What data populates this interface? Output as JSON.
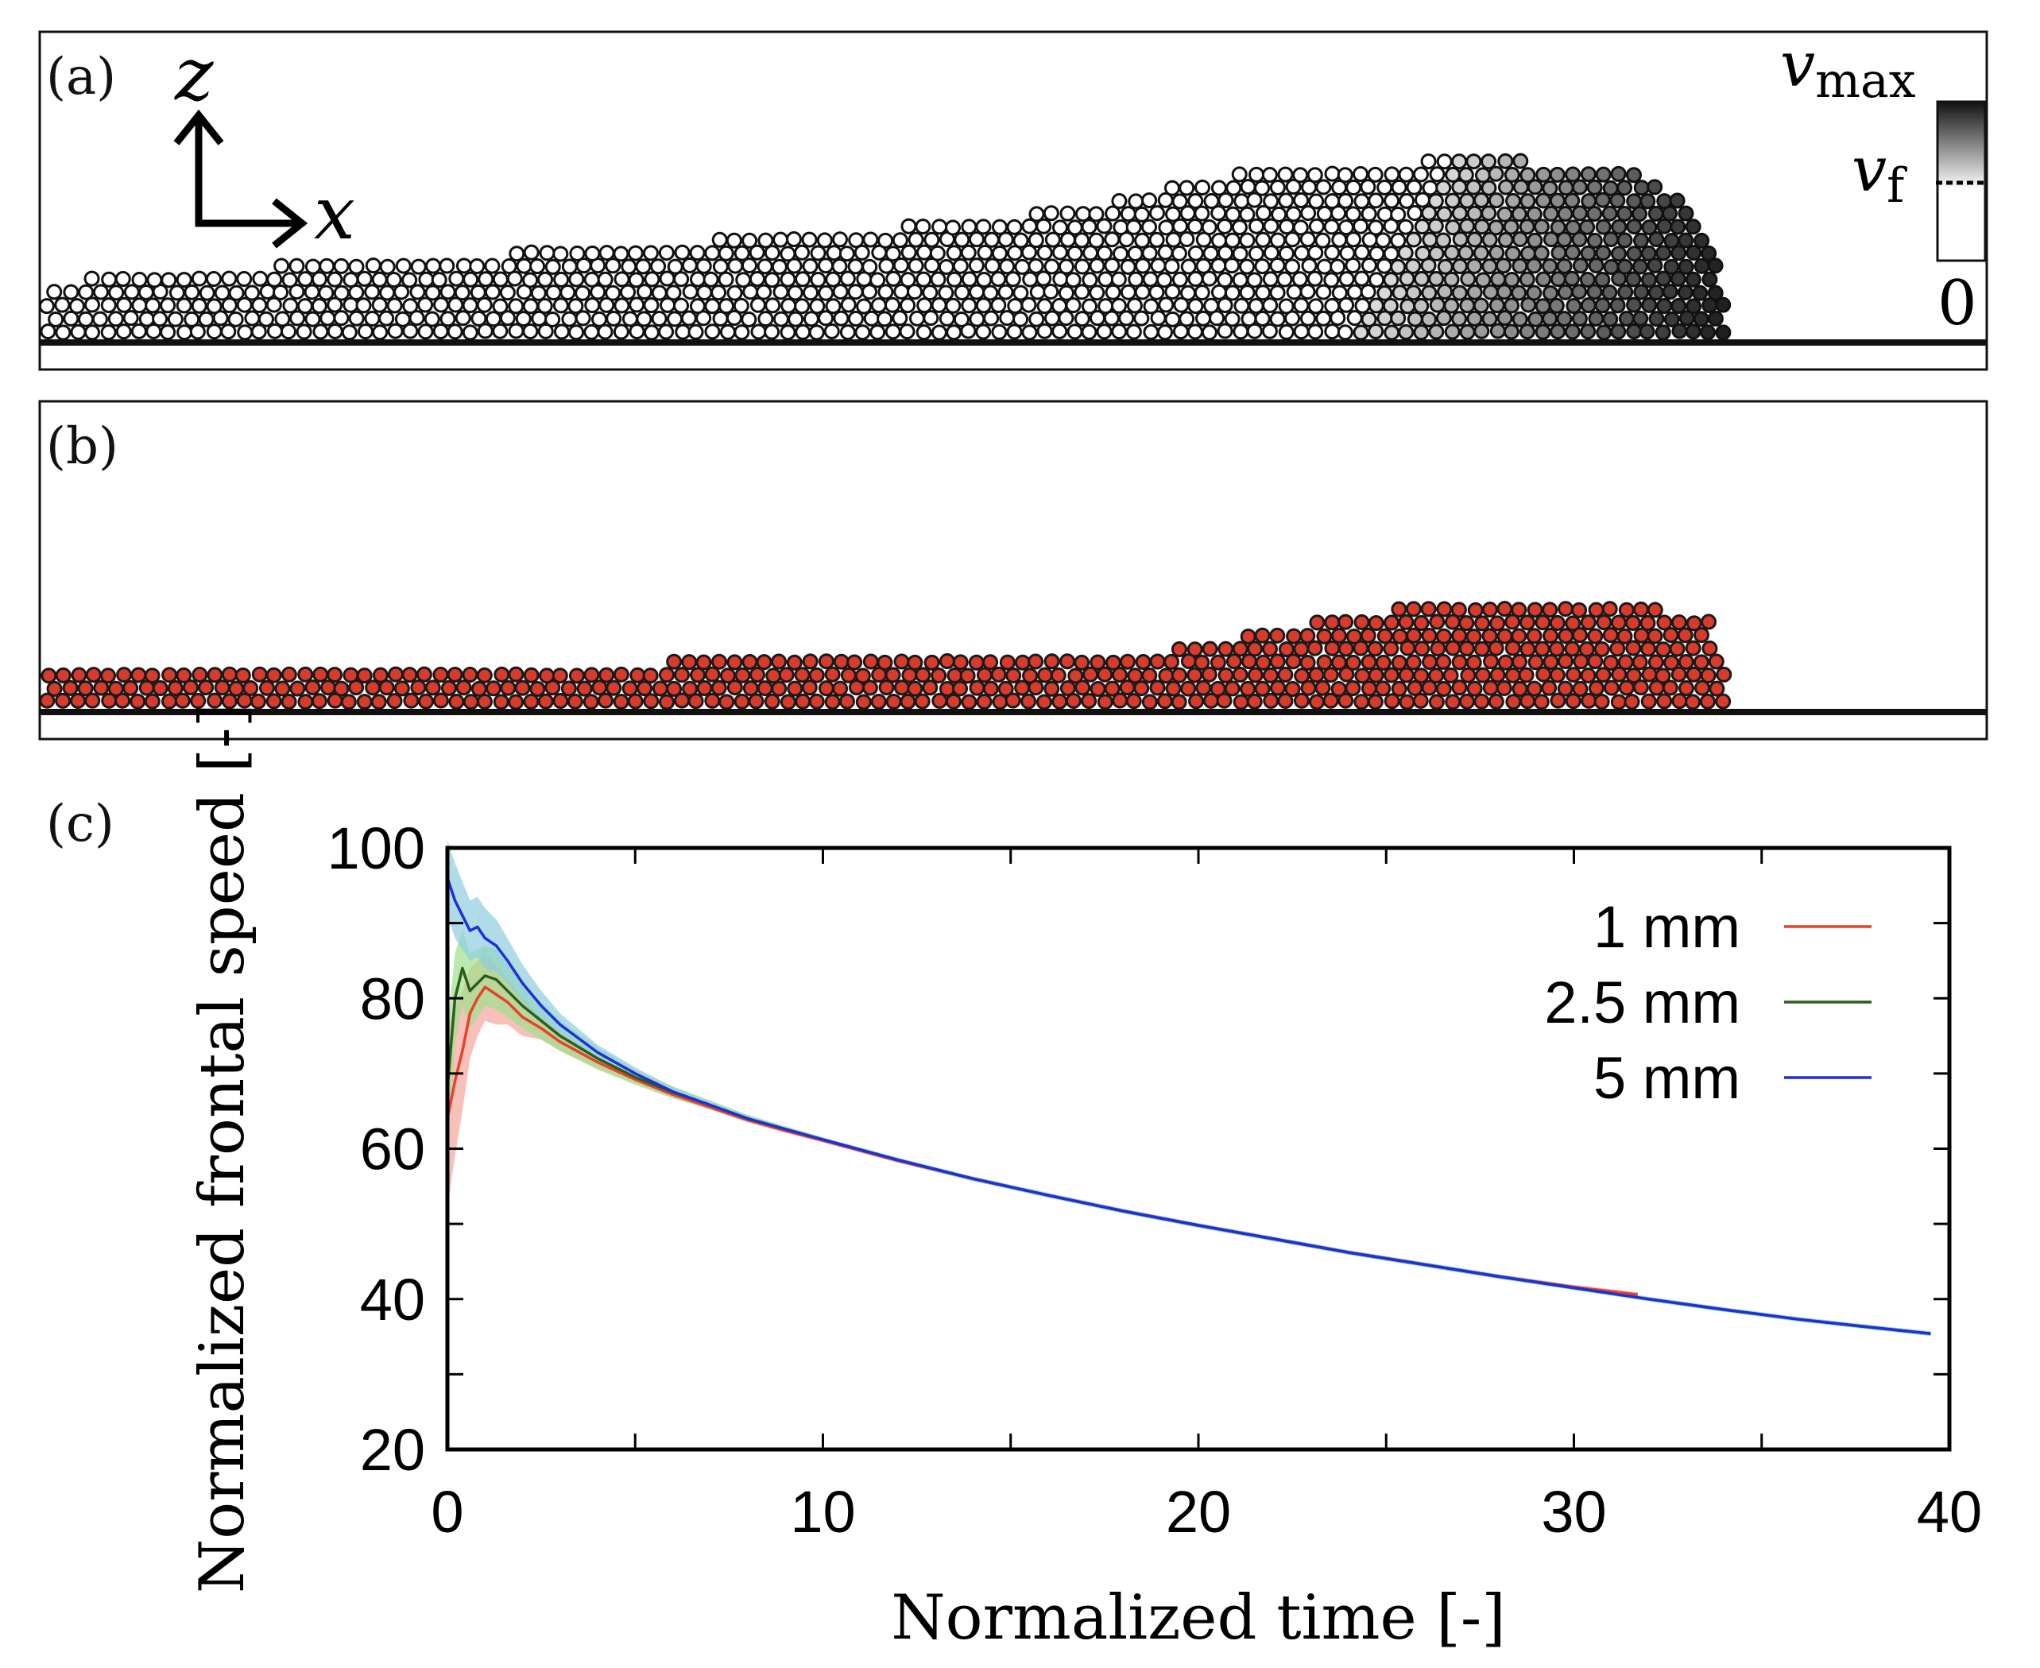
{
  "panels": {
    "a": {
      "label": "(a)",
      "axis_z": "z",
      "axis_x": "x",
      "colorbar": {
        "max_label": "v",
        "max_sub": "max",
        "mid_label": "v",
        "mid_sub": "f",
        "min_label": "0"
      },
      "particle_fill": "#ffffff",
      "particle_edge": "#111111",
      "front_gradient": [
        "#ffffff",
        "#1a1a1a"
      ]
    },
    "b": {
      "label": "(b)",
      "particle_fill": "#d83a2c",
      "particle_edge": "#1a1a1a"
    },
    "c": {
      "label": "(c)"
    }
  },
  "chart_data": {
    "type": "line",
    "title": "",
    "xlabel": "Normalized time [-]",
    "ylabel": "Normalized frontal speed [-]",
    "xlim": [
      0,
      40
    ],
    "ylim": [
      20,
      100
    ],
    "xticks": [
      0,
      10,
      20,
      30,
      40
    ],
    "yticks": [
      20,
      40,
      60,
      80,
      100
    ],
    "grid": false,
    "legend_position": "top-right",
    "series": [
      {
        "name": "1 mm",
        "color": "#e8402a",
        "band_color": "#f4a79c",
        "x": [
          0,
          0.2,
          0.4,
          0.6,
          0.8,
          1.0,
          1.3,
          1.6,
          2.0,
          2.5,
          3,
          4,
          5,
          6,
          7,
          8,
          9,
          10,
          12,
          14,
          16,
          18,
          20,
          22,
          24,
          26,
          28,
          30,
          31.7
        ],
        "y": [
          64,
          69,
          73,
          78,
          80,
          81.5,
          80.5,
          79.5,
          77.5,
          76,
          74.2,
          71.5,
          69.2,
          67.2,
          65.5,
          63.8,
          62.4,
          61.1,
          58.4,
          56,
          53.8,
          51.7,
          49.8,
          48,
          46.2,
          44.6,
          43,
          41.6,
          40.6
        ],
        "band": [
          12,
          10,
          8,
          6,
          5,
          4.5,
          4,
          3,
          2.5,
          1.5,
          1.2,
          0.8,
          0.5,
          0.4,
          0.3,
          0.3,
          0.3,
          0.3,
          0.3,
          0.3,
          0.3,
          0.3,
          0.3,
          0.3,
          0.3,
          0.3,
          0.3,
          0.3,
          0.3
        ]
      },
      {
        "name": "2.5 mm",
        "color": "#2f5d1e",
        "band_color": "#9ee08c",
        "x": [
          0,
          0.2,
          0.4,
          0.6,
          0.8,
          1.0,
          1.3,
          1.6,
          2.0,
          2.5,
          3,
          4,
          5,
          6,
          7,
          8,
          9,
          10,
          12,
          14,
          16,
          18,
          20,
          22,
          24,
          26,
          28,
          30,
          32,
          34,
          36,
          38,
          39.5
        ],
        "y": [
          68,
          80,
          84,
          81,
          82,
          83,
          82.5,
          81,
          79,
          77,
          75,
          72,
          69.5,
          67.5,
          65.8,
          64,
          62.6,
          61.2,
          58.5,
          56,
          53.8,
          51.7,
          49.8,
          48,
          46.2,
          44.6,
          43,
          41.5,
          40,
          38.6,
          37.3,
          36.2,
          35.4
        ],
        "band": [
          8,
          6,
          5,
          5,
          4.5,
          4,
          4,
          3.5,
          3,
          2.5,
          2,
          1.5,
          1,
          0.8,
          0.6,
          0.5,
          0.4,
          0.3,
          0.3,
          0.3,
          0.3,
          0.3,
          0.3,
          0.3,
          0.3,
          0.3,
          0.3,
          0.3,
          0.3,
          0.3,
          0.3,
          0.3,
          0.3
        ]
      },
      {
        "name": "5 mm",
        "color": "#1f2fd9",
        "band_color": "#8ecdde",
        "x": [
          0,
          0.2,
          0.4,
          0.6,
          0.8,
          1.0,
          1.3,
          1.6,
          2.0,
          2.5,
          3,
          4,
          5,
          6,
          7,
          8,
          9,
          10,
          12,
          14,
          16,
          18,
          20,
          22,
          24,
          26,
          28,
          30,
          32,
          34,
          36,
          38,
          39.5
        ],
        "y": [
          96,
          93,
          91,
          89,
          89.5,
          88,
          87,
          85,
          82,
          79,
          76.5,
          72.8,
          70,
          67.6,
          65.8,
          64,
          62.6,
          61.2,
          58.5,
          56,
          53.8,
          51.7,
          49.8,
          48,
          46.2,
          44.6,
          43,
          41.5,
          40,
          38.6,
          37.3,
          36.2,
          35.4
        ],
        "band": [
          5,
          5,
          4.5,
          4,
          4,
          4,
          3.5,
          3,
          2.5,
          2,
          1.5,
          1,
          0.8,
          0.6,
          0.5,
          0.4,
          0.3,
          0.3,
          0.3,
          0.3,
          0.3,
          0.3,
          0.3,
          0.3,
          0.3,
          0.3,
          0.3,
          0.3,
          0.3,
          0.3,
          0.3,
          0.3,
          0.3
        ]
      }
    ]
  }
}
